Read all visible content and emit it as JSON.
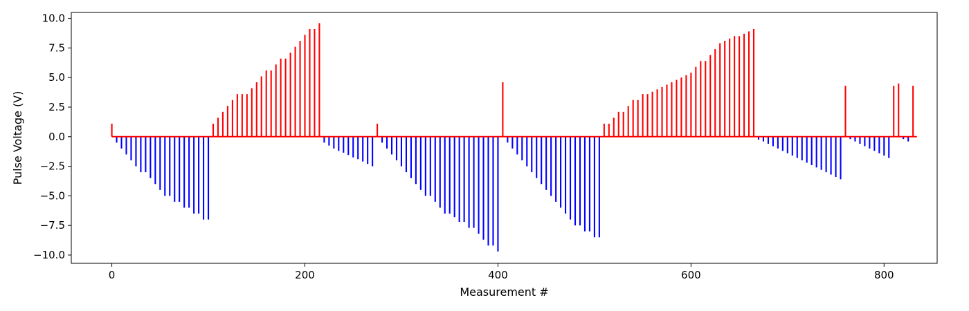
{
  "chart_data": {
    "type": "bar",
    "title": "",
    "xlabel": "Measurement #",
    "ylabel": "Pulse Voltage (V)",
    "xlim": [
      -42,
      855
    ],
    "ylim": [
      -10.7,
      10.5
    ],
    "xticks": [
      0,
      200,
      400,
      600,
      800
    ],
    "yticks": [
      -10.0,
      -7.5,
      -5.0,
      -2.5,
      0.0,
      2.5,
      5.0,
      7.5,
      10.0
    ],
    "colors": {
      "positive": "#ff0000",
      "negative": "#0000ff"
    },
    "bar_width_units": 1.5,
    "zero_line_range": [
      0,
      834
    ],
    "points": [
      [
        0,
        1.1
      ],
      [
        5,
        -0.5
      ],
      [
        10,
        -1.0
      ],
      [
        15,
        -1.5
      ],
      [
        20,
        -2.0
      ],
      [
        25,
        -2.5
      ],
      [
        30,
        -3.0
      ],
      [
        35,
        -3.0
      ],
      [
        40,
        -3.5
      ],
      [
        45,
        -4.0
      ],
      [
        50,
        -4.5
      ],
      [
        55,
        -5.0
      ],
      [
        60,
        -5.0
      ],
      [
        65,
        -5.5
      ],
      [
        70,
        -5.5
      ],
      [
        75,
        -6.0
      ],
      [
        80,
        -6.0
      ],
      [
        85,
        -6.5
      ],
      [
        90,
        -6.5
      ],
      [
        95,
        -7.0
      ],
      [
        100,
        -7.0
      ],
      [
        105,
        1.1
      ],
      [
        110,
        1.6
      ],
      [
        115,
        2.1
      ],
      [
        120,
        2.6
      ],
      [
        125,
        3.1
      ],
      [
        130,
        3.6
      ],
      [
        135,
        3.6
      ],
      [
        140,
        3.6
      ],
      [
        145,
        4.1
      ],
      [
        150,
        4.6
      ],
      [
        155,
        5.1
      ],
      [
        160,
        5.6
      ],
      [
        165,
        5.6
      ],
      [
        170,
        6.1
      ],
      [
        175,
        6.6
      ],
      [
        180,
        6.6
      ],
      [
        185,
        7.1
      ],
      [
        190,
        7.6
      ],
      [
        195,
        8.1
      ],
      [
        200,
        8.6
      ],
      [
        205,
        9.1
      ],
      [
        210,
        9.1
      ],
      [
        215,
        9.6
      ],
      [
        220,
        -0.5
      ],
      [
        225,
        -0.75
      ],
      [
        230,
        -1.0
      ],
      [
        235,
        -1.2
      ],
      [
        240,
        -1.35
      ],
      [
        245,
        -1.55
      ],
      [
        250,
        -1.75
      ],
      [
        255,
        -1.9
      ],
      [
        260,
        -2.1
      ],
      [
        265,
        -2.3
      ],
      [
        270,
        -2.5
      ],
      [
        275,
        1.1
      ],
      [
        280,
        -0.5
      ],
      [
        285,
        -1.0
      ],
      [
        290,
        -1.5
      ],
      [
        295,
        -2.0
      ],
      [
        300,
        -2.5
      ],
      [
        305,
        -3.0
      ],
      [
        310,
        -3.5
      ],
      [
        315,
        -4.0
      ],
      [
        320,
        -4.5
      ],
      [
        325,
        -5.0
      ],
      [
        330,
        -5.0
      ],
      [
        335,
        -5.5
      ],
      [
        340,
        -6.0
      ],
      [
        345,
        -6.5
      ],
      [
        350,
        -6.5
      ],
      [
        355,
        -6.8
      ],
      [
        360,
        -7.2
      ],
      [
        365,
        -7.2
      ],
      [
        370,
        -7.7
      ],
      [
        375,
        -7.7
      ],
      [
        380,
        -8.2
      ],
      [
        385,
        -8.7
      ],
      [
        390,
        -9.2
      ],
      [
        395,
        -9.2
      ],
      [
        400,
        -9.7
      ],
      [
        405,
        4.6
      ],
      [
        410,
        -0.5
      ],
      [
        415,
        -1.0
      ],
      [
        420,
        -1.5
      ],
      [
        425,
        -2.0
      ],
      [
        430,
        -2.5
      ],
      [
        435,
        -3.0
      ],
      [
        440,
        -3.5
      ],
      [
        445,
        -4.0
      ],
      [
        450,
        -4.5
      ],
      [
        455,
        -5.0
      ],
      [
        460,
        -5.5
      ],
      [
        465,
        -6.0
      ],
      [
        470,
        -6.5
      ],
      [
        475,
        -7.0
      ],
      [
        480,
        -7.5
      ],
      [
        485,
        -7.5
      ],
      [
        490,
        -8.0
      ],
      [
        495,
        -8.0
      ],
      [
        500,
        -8.5
      ],
      [
        505,
        -8.5
      ],
      [
        510,
        1.1
      ],
      [
        515,
        1.1
      ],
      [
        520,
        1.6
      ],
      [
        525,
        2.1
      ],
      [
        530,
        2.1
      ],
      [
        535,
        2.6
      ],
      [
        540,
        3.1
      ],
      [
        545,
        3.1
      ],
      [
        550,
        3.6
      ],
      [
        555,
        3.6
      ],
      [
        560,
        3.8
      ],
      [
        565,
        4.0
      ],
      [
        570,
        4.2
      ],
      [
        575,
        4.4
      ],
      [
        580,
        4.6
      ],
      [
        585,
        4.8
      ],
      [
        590,
        5.0
      ],
      [
        595,
        5.2
      ],
      [
        600,
        5.4
      ],
      [
        605,
        5.9
      ],
      [
        610,
        6.4
      ],
      [
        615,
        6.4
      ],
      [
        620,
        6.9
      ],
      [
        625,
        7.4
      ],
      [
        630,
        7.9
      ],
      [
        635,
        8.1
      ],
      [
        640,
        8.3
      ],
      [
        645,
        8.5
      ],
      [
        650,
        8.5
      ],
      [
        655,
        8.7
      ],
      [
        660,
        8.9
      ],
      [
        665,
        9.1
      ],
      [
        670,
        -0.25
      ],
      [
        675,
        -0.4
      ],
      [
        680,
        -0.6
      ],
      [
        685,
        -0.8
      ],
      [
        690,
        -1.0
      ],
      [
        695,
        -1.2
      ],
      [
        700,
        -1.4
      ],
      [
        705,
        -1.6
      ],
      [
        710,
        -1.8
      ],
      [
        715,
        -2.0
      ],
      [
        720,
        -2.2
      ],
      [
        725,
        -2.4
      ],
      [
        730,
        -2.6
      ],
      [
        735,
        -2.8
      ],
      [
        740,
        -3.0
      ],
      [
        745,
        -3.2
      ],
      [
        750,
        -3.4
      ],
      [
        755,
        -3.6
      ],
      [
        760,
        4.3
      ],
      [
        765,
        -0.2
      ],
      [
        770,
        -0.4
      ],
      [
        775,
        -0.6
      ],
      [
        780,
        -0.8
      ],
      [
        785,
        -1.0
      ],
      [
        790,
        -1.2
      ],
      [
        795,
        -1.4
      ],
      [
        800,
        -1.6
      ],
      [
        805,
        -1.8
      ],
      [
        810,
        4.3
      ],
      [
        815,
        4.5
      ],
      [
        820,
        -0.2
      ],
      [
        825,
        -0.4
      ],
      [
        830,
        4.3
      ]
    ]
  }
}
